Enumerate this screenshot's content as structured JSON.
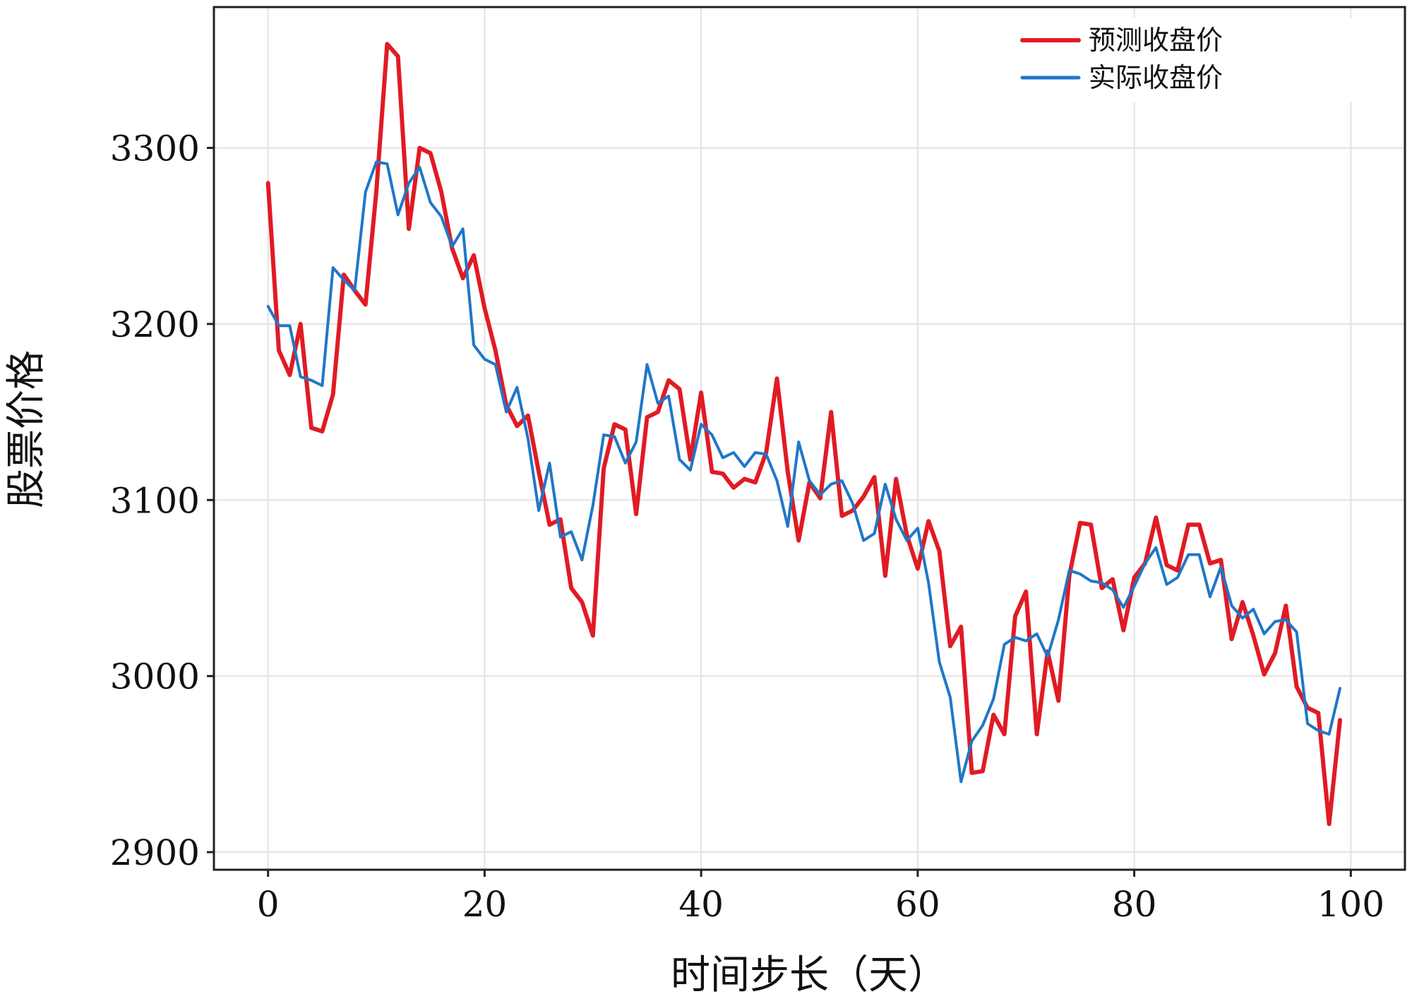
{
  "chart_data": {
    "type": "line",
    "title": "",
    "xlabel": "时间步长（天）",
    "ylabel": "股票价格",
    "xlim": [
      -5,
      105
    ],
    "ylim": [
      2890,
      3380
    ],
    "xticks": [
      0,
      20,
      40,
      60,
      80,
      100
    ],
    "yticks": [
      2900,
      3000,
      3100,
      3200,
      3300
    ],
    "grid": true,
    "legend_position": "top-right",
    "series": [
      {
        "name": "预测收盘价",
        "color": "#e01b24",
        "x": [
          0,
          1,
          2,
          3,
          4,
          5,
          6,
          7,
          8,
          9,
          10,
          11,
          12,
          13,
          14,
          15,
          16,
          17,
          18,
          19,
          20,
          21,
          22,
          23,
          24,
          25,
          26,
          27,
          28,
          29,
          30,
          31,
          32,
          33,
          34,
          35,
          36,
          37,
          38,
          39,
          40,
          41,
          42,
          43,
          44,
          45,
          46,
          47,
          48,
          49,
          50,
          51,
          52,
          53,
          54,
          55,
          56,
          57,
          58,
          59,
          60,
          61,
          62,
          63,
          64,
          65,
          66,
          67,
          68,
          69,
          70,
          71,
          72,
          73,
          74,
          75,
          76,
          77,
          78,
          79,
          80,
          81,
          82,
          83,
          84,
          85,
          86,
          87,
          88,
          89,
          90,
          91,
          92,
          93,
          94,
          95,
          96,
          97,
          98,
          99
        ],
        "y": [
          3280,
          3185,
          3171,
          3200,
          3141,
          3139,
          3160,
          3228,
          3219,
          3211,
          3275,
          3359,
          3352,
          3254,
          3300,
          3297,
          3275,
          3243,
          3226,
          3239,
          3209,
          3185,
          3154,
          3142,
          3148,
          3116,
          3086,
          3089,
          3050,
          3042,
          3023,
          3118,
          3143,
          3140,
          3092,
          3147,
          3150,
          3168,
          3163,
          3123,
          3161,
          3116,
          3115,
          3107,
          3112,
          3110,
          3127,
          3169,
          3116,
          3077,
          3110,
          3101,
          3150,
          3091,
          3094,
          3102,
          3113,
          3057,
          3112,
          3080,
          3061,
          3088,
          3071,
          3017,
          3028,
          2945,
          2946,
          2978,
          2967,
          3034,
          3048,
          2967,
          3014,
          2986,
          3057,
          3087,
          3086,
          3050,
          3055,
          3026,
          3056,
          3064,
          3090,
          3063,
          3060,
          3086,
          3086,
          3064,
          3066,
          3021,
          3042,
          3023,
          3001,
          3013,
          3040,
          2994,
          2982,
          2979,
          2916,
          2975
        ]
      },
      {
        "name": "实际收盘价",
        "color": "#1f77c8",
        "x": [
          0,
          1,
          2,
          3,
          4,
          5,
          6,
          7,
          8,
          9,
          10,
          11,
          12,
          13,
          14,
          15,
          16,
          17,
          18,
          19,
          20,
          21,
          22,
          23,
          24,
          25,
          26,
          27,
          28,
          29,
          30,
          31,
          32,
          33,
          34,
          35,
          36,
          37,
          38,
          39,
          40,
          41,
          42,
          43,
          44,
          45,
          46,
          47,
          48,
          49,
          50,
          51,
          52,
          53,
          54,
          55,
          56,
          57,
          58,
          59,
          60,
          61,
          62,
          63,
          64,
          65,
          66,
          67,
          68,
          69,
          70,
          71,
          72,
          73,
          74,
          75,
          76,
          77,
          78,
          79,
          80,
          81,
          82,
          83,
          84,
          85,
          86,
          87,
          88,
          89,
          90,
          91,
          92,
          93,
          94,
          95,
          96,
          97,
          98,
          99
        ],
        "y": [
          3210,
          3199,
          3199,
          3170,
          3168,
          3165,
          3232,
          3225,
          3219,
          3275,
          3292,
          3291,
          3262,
          3280,
          3289,
          3269,
          3261,
          3244,
          3254,
          3188,
          3180,
          3177,
          3150,
          3164,
          3135,
          3094,
          3121,
          3079,
          3082,
          3066,
          3097,
          3137,
          3136,
          3121,
          3133,
          3177,
          3155,
          3159,
          3123,
          3117,
          3143,
          3137,
          3124,
          3127,
          3119,
          3127,
          3126,
          3111,
          3085,
          3133,
          3111,
          3103,
          3109,
          3111,
          3098,
          3077,
          3081,
          3109,
          3089,
          3077,
          3084,
          3053,
          3008,
          2988,
          2940,
          2963,
          2972,
          2987,
          3018,
          3022,
          3020,
          3024,
          3011,
          3032,
          3060,
          3058,
          3054,
          3053,
          3049,
          3039,
          3051,
          3064,
          3073,
          3052,
          3056,
          3069,
          3069,
          3045,
          3062,
          3040,
          3033,
          3038,
          3024,
          3031,
          3032,
          3025,
          2973,
          2969,
          2967,
          2993
        ]
      }
    ]
  }
}
